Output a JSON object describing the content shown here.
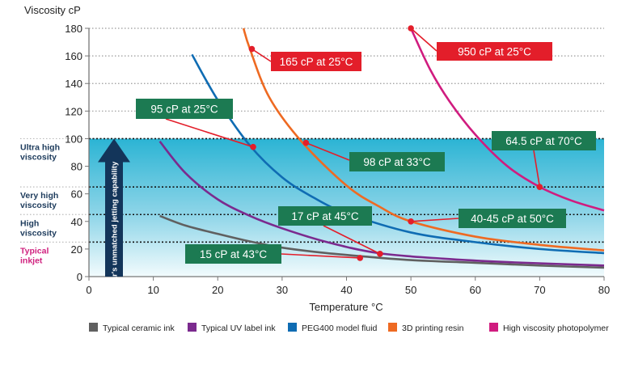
{
  "chart_data": {
    "type": "line",
    "ylabel": "Viscosity cP",
    "xlabel": "Temperature °C",
    "xlim": [
      0,
      80
    ],
    "ylim": [
      0,
      180
    ],
    "xticks": [
      0,
      10,
      20,
      30,
      40,
      50,
      60,
      70,
      80
    ],
    "yticks": [
      0,
      20,
      40,
      60,
      80,
      100,
      120,
      140,
      160,
      180
    ],
    "grid": "horizontal dotted",
    "legend_position": "bottom",
    "bands": [
      {
        "label": "Ultra high viscosity",
        "from": 65,
        "to": 100,
        "color": "#1d3b5c"
      },
      {
        "label": "Very high viscosity",
        "from": 45,
        "to": 65,
        "color": "#1d3b5c"
      },
      {
        "label": "High viscosity",
        "from": 25,
        "to": 45,
        "color": "#1d3b5c"
      },
      {
        "label": "Typical inkjet",
        "from": 0,
        "to": 25,
        "color": "#d0227f"
      }
    ],
    "arrow_label": "Xaar's unmatched jetting capability",
    "series": [
      {
        "name": "Typical ceramic ink",
        "color": "#606060",
        "x": [
          11,
          15,
          20,
          25,
          30,
          36,
          43,
          50,
          60,
          70,
          80
        ],
        "y": [
          44,
          37,
          31,
          25.5,
          21,
          17.5,
          14.5,
          12,
          10,
          8,
          6.5
        ]
      },
      {
        "name": "Typical UV label ink",
        "color": "#7b2a8e",
        "x": [
          11,
          15,
          20,
          25,
          30,
          37,
          45,
          55,
          65,
          80
        ],
        "y": [
          98,
          75,
          56,
          44,
          35,
          25,
          17,
          13,
          10.5,
          8
        ]
      },
      {
        "name": "PEG400 model fluid",
        "color": "#0f6cb3",
        "x": [
          16,
          20,
          25,
          30,
          35,
          40,
          50,
          60,
          70,
          80
        ],
        "y": [
          161,
          128,
          95,
          72,
          57,
          46,
          32,
          25,
          20,
          17
        ]
      },
      {
        "name": "3D printing resin",
        "color": "#ee6a22",
        "x": [
          24,
          25,
          28,
          33,
          40,
          45,
          50,
          60,
          70,
          80
        ],
        "y": [
          180,
          165,
          130,
          98,
          66,
          51,
          40,
          29,
          23,
          19
        ]
      },
      {
        "name": "High viscosity photopolymer",
        "color": "#d01c7f",
        "x": [
          50,
          53,
          56,
          60,
          65,
          70,
          75,
          80
        ],
        "y": [
          180,
          150,
          127,
          103,
          80,
          65,
          55,
          48
        ]
      }
    ],
    "annotations": [
      {
        "text": "165 cP at 25°C",
        "x": 25.3,
        "y": 165,
        "color": "#e31e2a"
      },
      {
        "text": "950 cP at 25°C",
        "x": 50,
        "y": 180,
        "color": "#e31e2a"
      },
      {
        "text": "95 cP at 25°C",
        "x": 25.5,
        "y": 94,
        "color": "#1c7a52"
      },
      {
        "text": "98 cP at 33°C",
        "x": 33.7,
        "y": 97,
        "color": "#1c7a52"
      },
      {
        "text": "64.5 cP at 70°C",
        "x": 70,
        "y": 65,
        "color": "#1c7a52"
      },
      {
        "text": "17 cP at 45°C",
        "x": 45.2,
        "y": 16.5,
        "color": "#1c7a52"
      },
      {
        "text": "40-45 cP at 50°C",
        "x": 50,
        "y": 40,
        "color": "#1c7a52"
      },
      {
        "text": "15 cP at 43°C",
        "x": 42.1,
        "y": 13.5,
        "color": "#1c7a52"
      }
    ]
  }
}
